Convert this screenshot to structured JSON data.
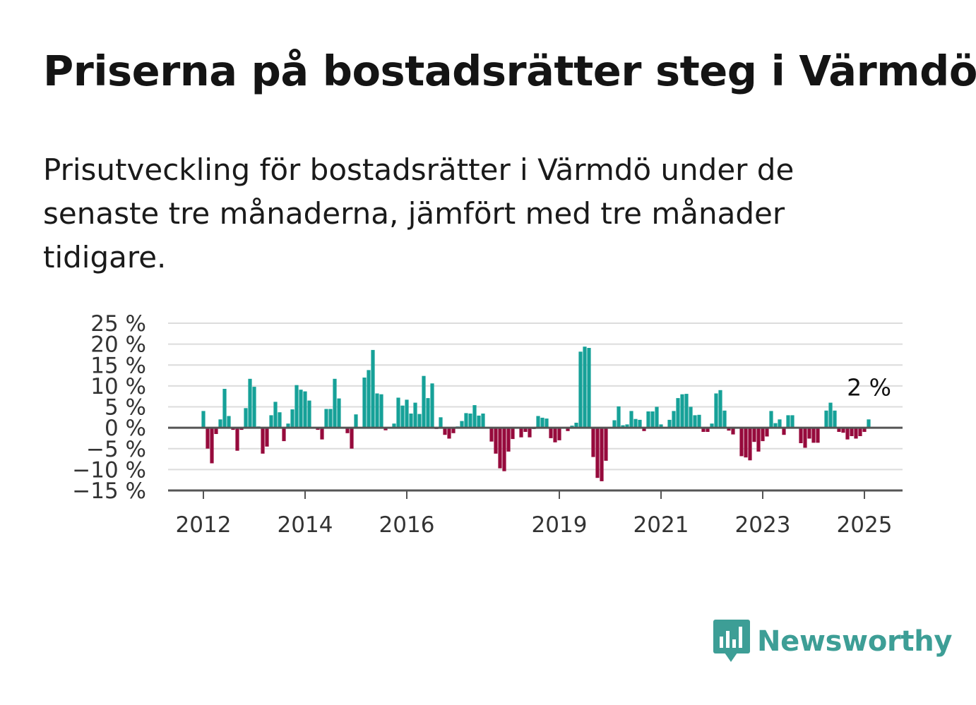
{
  "title": "Priserna på bostadsrätter steg i Värmdö",
  "subtitle": "Prisutveckling för bostadsrätter i Värmdö under de senaste tre månaderna, jämfört med tre månader tidigare.",
  "brand": "Newsworthy",
  "colors": {
    "positive": "#16a198",
    "negative": "#960a3c",
    "brand": "#3d9e96",
    "grid": "#dcdcdc",
    "axis": "#555555"
  },
  "chart_data": {
    "type": "bar",
    "x_start": "2012-01",
    "x_step": "month",
    "xticks": [
      {
        "label": "2012",
        "month": "2012-01"
      },
      {
        "label": "2014",
        "month": "2014-01"
      },
      {
        "label": "2016",
        "month": "2016-01"
      },
      {
        "label": "2019",
        "month": "2019-01"
      },
      {
        "label": "2021",
        "month": "2021-01"
      },
      {
        "label": "2023",
        "month": "2023-01"
      },
      {
        "label": "2025",
        "month": "2025-01"
      }
    ],
    "yticks": [
      {
        "value": 25,
        "label": "25 %"
      },
      {
        "value": 20,
        "label": "20 %"
      },
      {
        "value": 15,
        "label": "15 %"
      },
      {
        "value": 10,
        "label": "10 %"
      },
      {
        "value": 5,
        "label": "5 %"
      },
      {
        "value": 0,
        "label": "0 %"
      },
      {
        "value": -5,
        "label": "−5 %"
      },
      {
        "value": -10,
        "label": "−10 %"
      },
      {
        "value": -15,
        "label": "−15 %"
      }
    ],
    "ylim": [
      -15,
      25
    ],
    "end_label": "2 %",
    "values": [
      4,
      -5,
      -8.5,
      -1.5,
      2,
      9.3,
      2.8,
      -0.5,
      -5.5,
      -0.5,
      4.7,
      11.7,
      9.8,
      0.3,
      -6.2,
      -4.5,
      3,
      6.2,
      3.7,
      -3.2,
      1,
      4.4,
      10.2,
      9.1,
      8.7,
      6.5,
      0,
      -0.5,
      -2.8,
      4.5,
      4.5,
      11.7,
      7,
      0,
      -1.3,
      -5,
      3.2,
      0,
      12,
      13.8,
      18.6,
      8.2,
      8,
      -0.6,
      0,
      1,
      7.2,
      5.3,
      6.7,
      3.4,
      6,
      3.3,
      12.4,
      7.1,
      10.6,
      -0.3,
      2.5,
      -1.7,
      -2.6,
      -1.3,
      0.3,
      1.6,
      3.5,
      3.4,
      5.4,
      2.9,
      3.4,
      -0.2,
      -3.3,
      -6.2,
      -9.7,
      -10.4,
      -5.7,
      -2.7,
      0,
      -2.3,
      -1,
      -2.3,
      -0.3,
      2.8,
      2.4,
      2.2,
      -2.5,
      -3.5,
      -3,
      0,
      -0.8,
      0.5,
      1.2,
      18.2,
      19.4,
      19.1,
      -7,
      -12,
      -12.8,
      -7.9,
      0,
      1.8,
      5.1,
      0.6,
      0.8,
      4,
      2.1,
      1.9,
      -0.8,
      3.9,
      3.9,
      5,
      0.8,
      0,
      1.9,
      4,
      7.1,
      8,
      8.1,
      5,
      3,
      3.1,
      -1,
      -1,
      1,
      8.2,
      9,
      4.1,
      -0.7,
      -1.6,
      0,
      -6.8,
      -7.1,
      -7.8,
      -3.4,
      -5.7,
      -3.2,
      -2.1,
      4,
      1.1,
      2,
      -1.7,
      3,
      3,
      0,
      -3.7,
      -4.8,
      -2.6,
      -3.6,
      -3.6,
      0,
      4.1,
      6,
      4.1,
      -1,
      -1.2,
      -2.8,
      -2,
      -2.6,
      -2,
      -1,
      2
    ]
  }
}
